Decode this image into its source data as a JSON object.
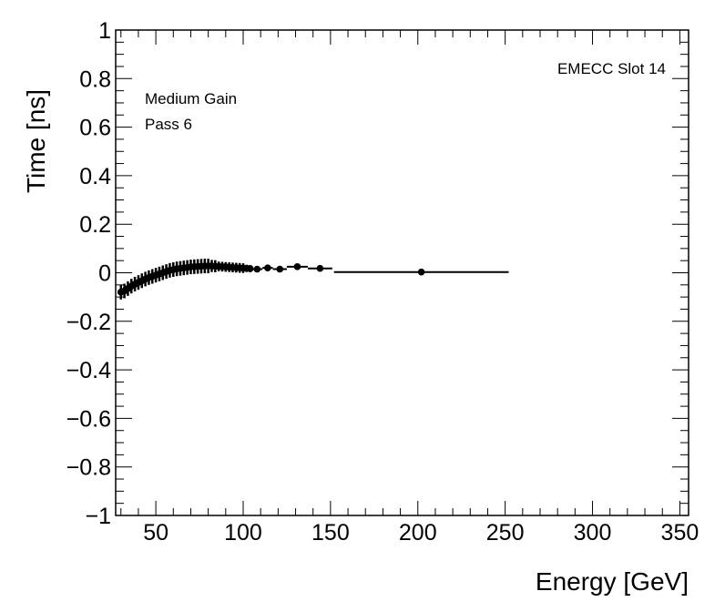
{
  "chart_data": {
    "type": "scatter",
    "xlabel": "Energy [GeV]",
    "ylabel": "Time [ns]",
    "xlim": [
      27,
      355
    ],
    "ylim": [
      -1,
      1
    ],
    "x_ticks": [
      50,
      100,
      150,
      200,
      250,
      300,
      350
    ],
    "x_tick_labels": [
      "50",
      "100",
      "150",
      "200",
      "250",
      "300",
      "350"
    ],
    "y_ticks": [
      -1,
      -0.8,
      -0.6,
      -0.4,
      -0.2,
      0,
      0.2,
      0.4,
      0.6,
      0.8,
      1
    ],
    "y_tick_labels": [
      "−1",
      "−0.8",
      "−0.6",
      "−0.4",
      "−0.2",
      "0",
      "0.2",
      "0.4",
      "0.6",
      "0.8",
      "1"
    ],
    "grid": false,
    "annotations": {
      "slot": "EMECC Slot 14",
      "gain": "Medium Gain",
      "pass": "Pass 6"
    },
    "series": [
      {
        "points": [
          {
            "x": 30,
            "y": -0.08,
            "xerr": 1,
            "yerr": 0.03
          },
          {
            "x": 32,
            "y": -0.075,
            "xerr": 1,
            "yerr": 0.03
          },
          {
            "x": 34,
            "y": -0.065,
            "xerr": 1,
            "yerr": 0.03
          },
          {
            "x": 36,
            "y": -0.055,
            "xerr": 1,
            "yerr": 0.03
          },
          {
            "x": 38,
            "y": -0.047,
            "xerr": 1,
            "yerr": 0.03
          },
          {
            "x": 40,
            "y": -0.04,
            "xerr": 1,
            "yerr": 0.03
          },
          {
            "x": 42,
            "y": -0.033,
            "xerr": 1,
            "yerr": 0.03
          },
          {
            "x": 44,
            "y": -0.026,
            "xerr": 1,
            "yerr": 0.03
          },
          {
            "x": 46,
            "y": -0.02,
            "xerr": 1,
            "yerr": 0.03
          },
          {
            "x": 48,
            "y": -0.015,
            "xerr": 1,
            "yerr": 0.03
          },
          {
            "x": 50,
            "y": -0.01,
            "xerr": 1,
            "yerr": 0.03
          },
          {
            "x": 52,
            "y": -0.005,
            "xerr": 1,
            "yerr": 0.03
          },
          {
            "x": 54,
            "y": 0.0,
            "xerr": 1,
            "yerr": 0.03
          },
          {
            "x": 56,
            "y": 0.005,
            "xerr": 1,
            "yerr": 0.03
          },
          {
            "x": 58,
            "y": 0.01,
            "xerr": 1,
            "yerr": 0.03
          },
          {
            "x": 60,
            "y": 0.013,
            "xerr": 1,
            "yerr": 0.03
          },
          {
            "x": 62,
            "y": 0.016,
            "xerr": 1,
            "yerr": 0.03
          },
          {
            "x": 64,
            "y": 0.018,
            "xerr": 1,
            "yerr": 0.03
          },
          {
            "x": 66,
            "y": 0.02,
            "xerr": 1,
            "yerr": 0.03
          },
          {
            "x": 68,
            "y": 0.022,
            "xerr": 1,
            "yerr": 0.03
          },
          {
            "x": 70,
            "y": 0.024,
            "xerr": 1,
            "yerr": 0.03
          },
          {
            "x": 72,
            "y": 0.025,
            "xerr": 1,
            "yerr": 0.03
          },
          {
            "x": 74,
            "y": 0.026,
            "xerr": 1,
            "yerr": 0.03
          },
          {
            "x": 76,
            "y": 0.027,
            "xerr": 1,
            "yerr": 0.03
          },
          {
            "x": 78,
            "y": 0.028,
            "xerr": 1,
            "yerr": 0.03
          },
          {
            "x": 80,
            "y": 0.028,
            "xerr": 1,
            "yerr": 0.03
          },
          {
            "x": 82,
            "y": 0.028,
            "xerr": 1,
            "yerr": 0.025
          },
          {
            "x": 84,
            "y": 0.027,
            "xerr": 1,
            "yerr": 0.025
          },
          {
            "x": 86,
            "y": 0.026,
            "xerr": 1,
            "yerr": 0.02
          },
          {
            "x": 88,
            "y": 0.025,
            "xerr": 1,
            "yerr": 0.02
          },
          {
            "x": 90,
            "y": 0.024,
            "xerr": 1,
            "yerr": 0.02
          },
          {
            "x": 92,
            "y": 0.023,
            "xerr": 1,
            "yerr": 0.02
          },
          {
            "x": 94,
            "y": 0.022,
            "xerr": 1,
            "yerr": 0.02
          },
          {
            "x": 96,
            "y": 0.021,
            "xerr": 1,
            "yerr": 0.02
          },
          {
            "x": 98,
            "y": 0.02,
            "xerr": 1,
            "yerr": 0.02
          },
          {
            "x": 100,
            "y": 0.019,
            "xerr": 1,
            "yerr": 0.02
          },
          {
            "x": 102,
            "y": 0.018,
            "xerr": 1,
            "yerr": 0.015
          },
          {
            "x": 104,
            "y": 0.017,
            "xerr": 1,
            "yerr": 0.015
          },
          {
            "x": 108,
            "y": 0.015,
            "xerr": 3,
            "yerr": 0.01
          },
          {
            "x": 114,
            "y": 0.02,
            "xerr": 3,
            "yerr": 0.01
          },
          {
            "x": 121,
            "y": 0.015,
            "xerr": 4,
            "yerr": 0.01
          },
          {
            "x": 131,
            "y": 0.025,
            "xerr": 6,
            "yerr": 0.008
          },
          {
            "x": 144,
            "y": 0.018,
            "xerr": 7,
            "yerr": 0.008
          },
          {
            "x": 202,
            "y": 0.003,
            "xerr": 50,
            "yerr": 0.005
          }
        ]
      }
    ]
  }
}
